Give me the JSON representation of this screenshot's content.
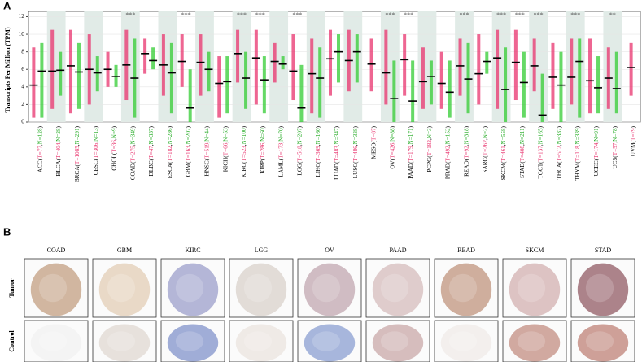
{
  "panel_labels": [
    "A",
    "B"
  ],
  "chart_data": {
    "type": "strip",
    "y_label": "Transcripts Per Million (TPM)",
    "ylim": [
      0,
      12.6
    ],
    "yticks": [
      0,
      2,
      4,
      6,
      8,
      10,
      12
    ],
    "grid": true,
    "categories": [
      "ACC",
      "BLCA",
      "BRCA",
      "CESC",
      "CHOL",
      "COAD",
      "DLBC",
      "ESCA",
      "GBM",
      "HNSC",
      "KICH",
      "KIRC",
      "KIRP",
      "LAML",
      "LGG",
      "LIHC",
      "LUAD",
      "LUSC",
      "MESO",
      "OV",
      "PAAD",
      "PCPG",
      "PRAD",
      "READ",
      "SARC",
      "SKCM",
      "STAD",
      "TGCT",
      "THCA",
      "THYM",
      "UCEC",
      "UCS",
      "UVM"
    ],
    "label_open": "(",
    "label_sep": ",",
    "label_close": ")",
    "tumor_n": [
      "T=77",
      "T=404",
      "T=1085",
      "T=306",
      "T=36",
      "T=275",
      "T=47",
      "T=182",
      "T=163",
      "T=519",
      "T=66",
      "T=523",
      "T=286",
      "T=173",
      "T=518",
      "T=369",
      "T=483",
      "T=486",
      "T=87",
      "T=426",
      "T=179",
      "T=182",
      "T=492",
      "T=92",
      "T=262",
      "T=461",
      "T=408",
      "T=137",
      "T=512",
      "T=118",
      "T=174",
      "T=57",
      "T=79"
    ],
    "normal_n": [
      "N=128",
      "N=28",
      "N=291",
      "N=13",
      "N=9",
      "N=349",
      "N=337",
      "N=286",
      "N=207",
      "N=44",
      "N=53",
      "N=100",
      "N=60",
      "N=70",
      "N=207",
      "N=160",
      "N=347",
      "N=338",
      null,
      "N=88",
      "N=171",
      "N=3",
      "N=152",
      "N=318",
      "N=2",
      "N=558",
      "N=211",
      "N=165",
      "N=337",
      "N=339",
      "N=91",
      "N=78",
      null
    ],
    "significance": [
      null,
      null,
      null,
      null,
      null,
      "***",
      null,
      null,
      "***",
      null,
      null,
      "***",
      "***",
      null,
      "***",
      null,
      null,
      null,
      null,
      "***",
      "***",
      null,
      null,
      "***",
      null,
      "***",
      "***",
      "***",
      null,
      "***",
      null,
      "**",
      null
    ],
    "series": [
      {
        "color": "#e8336d",
        "median": [
          4.2,
          5.8,
          6.4,
          6.0,
          6.0,
          6.5,
          7.8,
          6.5,
          6.9,
          6.8,
          4.4,
          7.8,
          7.3,
          6.9,
          5.8,
          5.5,
          7.2,
          7.0,
          6.6,
          5.6,
          7.1,
          4.6,
          4.4,
          6.4,
          5.5,
          7.3,
          6.8,
          6.4,
          5.1,
          5.1,
          4.7,
          5.0,
          6.2
        ],
        "low": [
          0.5,
          1.5,
          1.0,
          2.0,
          4.0,
          2.5,
          5.5,
          3.0,
          4.0,
          3.0,
          0.5,
          4.5,
          2.0,
          4.5,
          2.5,
          1.0,
          3.0,
          3.5,
          3.5,
          2.0,
          3.0,
          1.5,
          1.5,
          3.0,
          2.0,
          1.5,
          2.5,
          3.5,
          1.5,
          2.0,
          1.0,
          1.5,
          3.0
        ],
        "high": [
          8.5,
          10.5,
          10.5,
          10.0,
          8.0,
          10.5,
          9.5,
          10.0,
          10.0,
          10.0,
          7.5,
          10.5,
          10.5,
          9.0,
          10.0,
          9.5,
          10.5,
          10.5,
          9.5,
          10.5,
          10.0,
          8.5,
          8.0,
          9.5,
          10.0,
          10.5,
          10.5,
          9.5,
          9.0,
          9.5,
          9.5,
          8.5,
          9.0
        ]
      },
      {
        "color": "#33cc33",
        "median": [
          5.8,
          5.9,
          5.7,
          5.6,
          5.2,
          5.0,
          7.0,
          5.6,
          1.6,
          6.0,
          4.6,
          5.0,
          4.8,
          6.6,
          1.6,
          5.0,
          8.0,
          8.0,
          null,
          2.7,
          2.4,
          5.2,
          3.4,
          4.9,
          6.9,
          3.7,
          4.5,
          0.8,
          4.2,
          6.9,
          3.9,
          3.8,
          null
        ],
        "low": [
          0.5,
          3.0,
          1.5,
          3.5,
          4.0,
          0.5,
          6.0,
          1.0,
          0.0,
          3.5,
          1.0,
          1.5,
          1.0,
          6.0,
          0.0,
          0.5,
          4.5,
          4.5,
          null,
          0.0,
          0.0,
          2.0,
          0.5,
          1.0,
          5.5,
          0.0,
          0.5,
          0.0,
          0.0,
          0.5,
          1.0,
          1.0,
          null
        ],
        "high": [
          9.0,
          8.0,
          9.0,
          7.5,
          6.5,
          9.5,
          8.5,
          9.0,
          6.0,
          8.0,
          7.5,
          8.0,
          7.5,
          7.5,
          6.5,
          8.5,
          10.0,
          10.0,
          null,
          7.0,
          7.0,
          7.0,
          7.0,
          9.0,
          8.0,
          8.5,
          8.0,
          5.5,
          8.0,
          9.5,
          7.5,
          8.0,
          null
        ]
      }
    ]
  },
  "ihc": {
    "columns": [
      "COAD",
      "GBM",
      "KIRC",
      "LGG",
      "OV",
      "PAAD",
      "READ",
      "SKCM",
      "STAD"
    ],
    "rows": [
      "Tumor",
      "Control"
    ]
  }
}
